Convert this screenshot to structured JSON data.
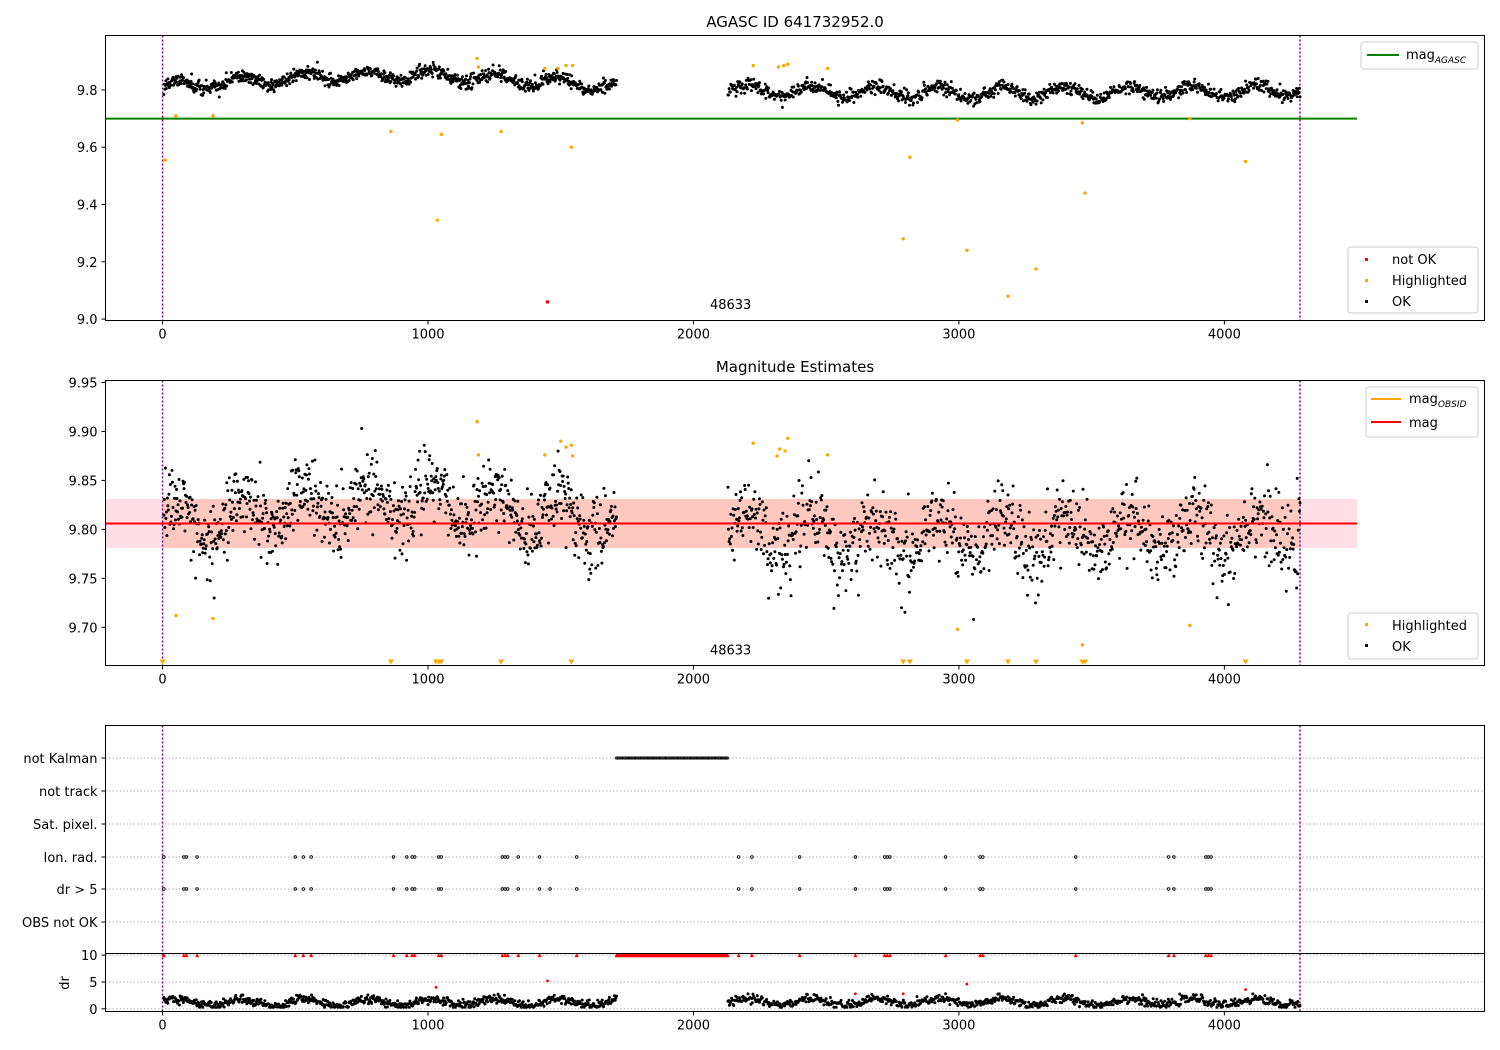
{
  "chart_data": [
    {
      "type": "scatter",
      "title": "AGASC ID 641732952.0",
      "xlabel": "",
      "ylabel": "",
      "xlim": [
        -215,
        4980
      ],
      "ylim": [
        8.995,
        9.99
      ],
      "x_ticks": [
        0,
        1000,
        2000,
        3000,
        4000
      ],
      "y_ticks": [
        9.0,
        9.2,
        9.4,
        9.6,
        9.8
      ],
      "y_tick_labels": [
        "9.0",
        "9.2",
        "9.4",
        "9.6",
        "9.8"
      ],
      "obsid_label": {
        "text": "48633",
        "x": 2140,
        "y": 9.035
      },
      "vlines": [
        0,
        4285
      ],
      "hline": {
        "name": "mag_AGASC",
        "value": 9.7,
        "x_range": [
          -215,
          4500
        ],
        "color": "#008000"
      },
      "legend_lines": [
        {
          "label": "mag",
          "sub": "AGASC",
          "color": "#008000"
        }
      ],
      "legend_points": [
        {
          "label": "not OK",
          "color": "#ff0000"
        },
        {
          "label": "Highlighted",
          "color": "#ffa500"
        },
        {
          "label": "OK",
          "color": "#000000"
        }
      ],
      "ok_segments": [
        {
          "x0": 5,
          "x1": 1710,
          "base": 9.81,
          "amp": 0.018,
          "noise": 0.012,
          "trend": 0.04,
          "n": 900
        },
        {
          "x0": 2130,
          "x1": 4285,
          "base": 9.8,
          "amp": 0.02,
          "noise": 0.012,
          "trend": -0.01,
          "n": 1000
        }
      ],
      "highlighted": [
        [
          10,
          9.555
        ],
        [
          50,
          9.71
        ],
        [
          190,
          9.71
        ],
        [
          860,
          9.655
        ],
        [
          1035,
          9.345
        ],
        [
          1050,
          9.645
        ],
        [
          1185,
          9.91
        ],
        [
          1190,
          9.88
        ],
        [
          1275,
          9.655
        ],
        [
          1440,
          9.875
        ],
        [
          1490,
          9.875
        ],
        [
          1520,
          9.885
        ],
        [
          1540,
          9.6
        ],
        [
          1545,
          9.885
        ],
        [
          2225,
          9.885
        ],
        [
          2320,
          9.88
        ],
        [
          2340,
          9.885
        ],
        [
          2355,
          9.89
        ],
        [
          2505,
          9.875
        ],
        [
          2790,
          9.28
        ],
        [
          2815,
          9.565
        ],
        [
          2995,
          9.695
        ],
        [
          3030,
          9.24
        ],
        [
          3185,
          9.08
        ],
        [
          3290,
          9.175
        ],
        [
          3465,
          9.685
        ],
        [
          3475,
          9.44
        ],
        [
          3870,
          9.7
        ],
        [
          4080,
          9.55
        ]
      ],
      "not_ok": [
        [
          1450,
          9.06
        ]
      ]
    },
    {
      "type": "scatter",
      "title": "Magnitude Estimates",
      "xlabel": "",
      "ylabel": "",
      "xlim": [
        -215,
        4980
      ],
      "ylim": [
        9.661,
        9.952
      ],
      "x_ticks": [
        0,
        1000,
        2000,
        3000,
        4000
      ],
      "y_ticks": [
        9.7,
        9.75,
        9.8,
        9.85,
        9.9,
        9.95
      ],
      "y_tick_labels": [
        "9.70",
        "9.75",
        "9.80",
        "9.85",
        "9.90",
        "9.95"
      ],
      "obsid_label": {
        "text": "48633",
        "x": 2140,
        "y": 9.672
      },
      "vlines": [
        0,
        4285
      ],
      "mag_line": {
        "name": "mag",
        "value": 9.806,
        "x_range": [
          -215,
          4500
        ],
        "color": "#ff0000"
      },
      "mag_band": {
        "low": 9.781,
        "high": 9.831,
        "x_range": [
          -215,
          4500
        ],
        "color": "#ffc0cb"
      },
      "obsid_band": {
        "low": 9.781,
        "high": 9.831,
        "x_range": [
          0,
          4285
        ],
        "color": "#ffa07a"
      },
      "obsid_line": {
        "value": 9.806,
        "x_range": [
          0,
          4285
        ],
        "color": "#ffa500"
      },
      "legend_lines": [
        {
          "label": "mag",
          "sub": "OBSID",
          "color": "#ffa500"
        },
        {
          "label": "mag",
          "sub": "",
          "color": "#ff0000"
        }
      ],
      "legend_points": [
        {
          "label": "Highlighted",
          "color": "#ffa500"
        },
        {
          "label": "OK",
          "color": "#000000"
        }
      ],
      "ok_segments": [
        {
          "x0": 5,
          "x1": 1710,
          "base": 9.806,
          "amp": 0.018,
          "noise": 0.018,
          "trend": 0.02,
          "n": 900
        },
        {
          "x0": 2130,
          "x1": 4285,
          "base": 9.8,
          "amp": 0.02,
          "noise": 0.02,
          "trend": -0.01,
          "n": 1000
        }
      ],
      "highlighted": [
        [
          50,
          9.712
        ],
        [
          190,
          9.709
        ],
        [
          1185,
          9.91
        ],
        [
          1190,
          9.876
        ],
        [
          1440,
          9.876
        ],
        [
          1500,
          9.89
        ],
        [
          1520,
          9.884
        ],
        [
          1540,
          9.886
        ],
        [
          1545,
          9.875
        ],
        [
          2225,
          9.888
        ],
        [
          2315,
          9.875
        ],
        [
          2325,
          9.882
        ],
        [
          2345,
          9.88
        ],
        [
          2355,
          9.893
        ],
        [
          2505,
          9.876
        ],
        [
          2995,
          9.698
        ],
        [
          3465,
          9.682
        ],
        [
          3870,
          9.702
        ]
      ],
      "below_range_markers": [
        0,
        860,
        1030,
        1040,
        1050,
        1275,
        1540,
        2790,
        2815,
        3030,
        3185,
        3290,
        3465,
        3475,
        4080
      ]
    },
    {
      "type": "scatter",
      "title": "",
      "xlabel": "",
      "ylabel": "",
      "xlim": [
        -215,
        4980
      ],
      "x_ticks": [
        0,
        1000,
        2000,
        3000,
        4000
      ],
      "vlines": [
        0,
        4285
      ],
      "flag_rows": [
        "not Kalman",
        "not track",
        "Sat. pixel.",
        "Ion. rad.",
        "dr > 5",
        "OBS not OK"
      ],
      "flags": {
        "not Kalman": {
          "ranges": [
            [
              1710,
              2130
            ]
          ]
        },
        "not track": {
          "points": []
        },
        "Sat. pixel.": {
          "points": []
        },
        "Ion. rad.": {
          "points": [
            5,
            80,
            90,
            130,
            500,
            530,
            560,
            870,
            920,
            940,
            950,
            1040,
            1050,
            1280,
            1290,
            1300,
            1340,
            1420,
            1560,
            2170,
            2220,
            2400,
            2610,
            2720,
            2730,
            2740,
            2950,
            3080,
            3090,
            3440,
            3790,
            3810,
            3930,
            3940,
            3950
          ]
        },
        "dr > 5": {
          "points": [
            5,
            80,
            90,
            130,
            500,
            530,
            560,
            870,
            920,
            940,
            950,
            1040,
            1050,
            1280,
            1290,
            1300,
            1340,
            1420,
            1460,
            1560,
            2170,
            2220,
            2400,
            2610,
            2720,
            2730,
            2740,
            2950,
            3080,
            3090,
            3440,
            3790,
            3810,
            3930,
            3940,
            3950
          ]
        },
        "OBS not OK": {
          "points": []
        }
      }
    },
    {
      "type": "scatter",
      "title": "",
      "xlabel": "",
      "ylabel": "dr",
      "xlim": [
        -215,
        4980
      ],
      "ylim": [
        -0.5,
        10.3
      ],
      "x_ticks": [
        0,
        1000,
        2000,
        3000,
        4000
      ],
      "x_tick_labels": [
        "0",
        "1000",
        "2000",
        "3000",
        "4000"
      ],
      "y_ticks": [
        0,
        5,
        10
      ],
      "y_tick_labels": [
        "0",
        "5",
        "10"
      ],
      "vlines": [
        0,
        4285
      ],
      "ok_segments": [
        {
          "x0": 5,
          "x1": 1710,
          "base": 1.2,
          "amp": 0.6,
          "noise": 0.4,
          "n": 700
        },
        {
          "x0": 2130,
          "x1": 4285,
          "base": 1.3,
          "amp": 0.6,
          "noise": 0.4,
          "n": 800
        }
      ],
      "clipped_at_10": [
        5,
        80,
        90,
        130,
        500,
        530,
        560,
        870,
        920,
        940,
        950,
        1040,
        1050,
        1280,
        1290,
        1300,
        1340,
        1420,
        1560,
        2170,
        2220,
        2400,
        2610,
        2720,
        2730,
        2740,
        2950,
        3080,
        3090,
        3440,
        3790,
        3810,
        3930,
        3940,
        3950
      ],
      "clipped_range_at_10": [
        1710,
        2130
      ],
      "red_points": [
        [
          1030,
          4.0
        ],
        [
          1450,
          5.2
        ],
        [
          2610,
          2.8
        ],
        [
          2790,
          2.8
        ],
        [
          3030,
          4.6
        ],
        [
          4080,
          3.6
        ]
      ]
    }
  ]
}
